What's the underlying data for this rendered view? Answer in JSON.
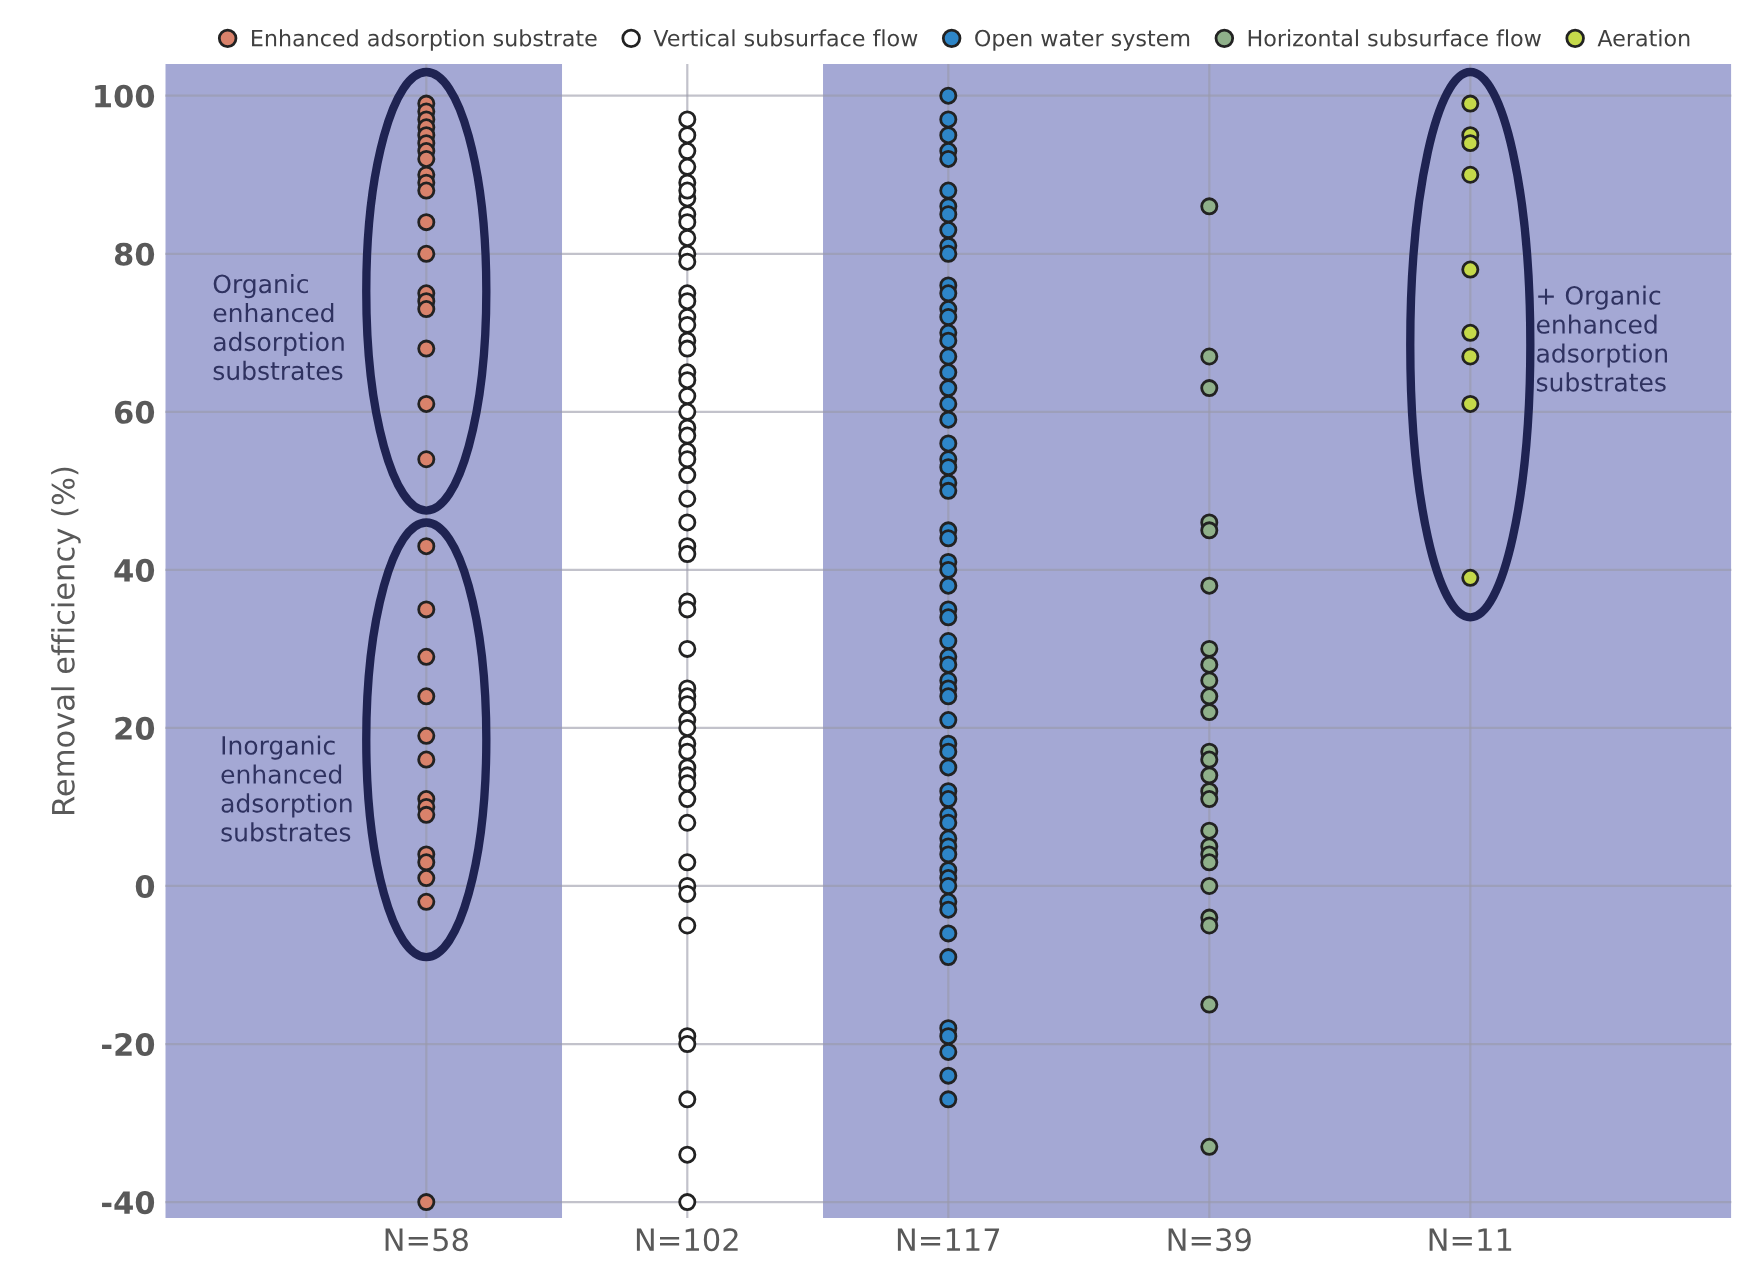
{
  "chart_data": {
    "type": "scatter",
    "ylabel": "Removal efficiency (%)",
    "categories": [
      "N=58",
      "N=102",
      "N=117",
      "N=39",
      "N=11"
    ],
    "ylim": [
      -42,
      104
    ],
    "yticks": [
      -40,
      -20,
      0,
      20,
      40,
      60,
      80,
      100
    ],
    "grid": true,
    "legend": "top",
    "marker": "circle",
    "series": [
      {
        "name": "Enhanced adsorption substrate",
        "color": "#d9826b",
        "x": [
          "N=58",
          "N=58",
          "N=58",
          "N=58",
          "N=58",
          "N=58",
          "N=58",
          "N=58",
          "N=58",
          "N=58",
          "N=58",
          "N=58",
          "N=58",
          "N=58",
          "N=58",
          "N=58",
          "N=58",
          "N=58",
          "N=58",
          "N=58",
          "N=58",
          "N=58",
          "N=58",
          "N=58",
          "N=58",
          "N=58",
          "N=58",
          "N=58",
          "N=58",
          "N=58",
          "N=58",
          "N=58",
          "N=58"
        ],
        "values": [
          99,
          98,
          97,
          96,
          95,
          94,
          93,
          92,
          90,
          89,
          88,
          84,
          80,
          75,
          74,
          73,
          68,
          61,
          54,
          43,
          35,
          29,
          24,
          19,
          16,
          11,
          10,
          9,
          4,
          3,
          1,
          -2,
          -40
        ]
      },
      {
        "name": "Vertical subsurface flow",
        "color": "#ffffff",
        "x": [
          "N=102",
          "N=102",
          "N=102",
          "N=102",
          "N=102",
          "N=102",
          "N=102",
          "N=102",
          "N=102",
          "N=102",
          "N=102",
          "N=102",
          "N=102",
          "N=102",
          "N=102",
          "N=102",
          "N=102",
          "N=102",
          "N=102",
          "N=102",
          "N=102",
          "N=102",
          "N=102",
          "N=102",
          "N=102",
          "N=102",
          "N=102",
          "N=102",
          "N=102",
          "N=102",
          "N=102",
          "N=102",
          "N=102",
          "N=102",
          "N=102",
          "N=102",
          "N=102",
          "N=102",
          "N=102",
          "N=102",
          "N=102",
          "N=102",
          "N=102",
          "N=102",
          "N=102",
          "N=102",
          "N=102",
          "N=102",
          "N=102",
          "N=102",
          "N=102",
          "N=102",
          "N=102",
          "N=102",
          "N=102"
        ],
        "values": [
          97,
          95,
          93,
          91,
          89,
          87,
          85,
          84,
          82,
          80,
          79,
          75,
          74,
          72,
          71,
          69,
          68,
          65,
          64,
          62,
          60,
          58,
          57,
          55,
          54,
          52,
          49,
          46,
          43,
          42,
          36,
          35,
          30,
          25,
          24,
          23,
          21,
          20,
          18,
          17,
          15,
          14,
          13,
          11,
          8,
          3,
          0,
          -1,
          -5,
          -19,
          -20,
          -27,
          -34,
          -40,
          88
        ]
      },
      {
        "name": "Open water system",
        "color": "#2e86c8",
        "x": [
          "N=117",
          "N=117",
          "N=117",
          "N=117",
          "N=117",
          "N=117",
          "N=117",
          "N=117",
          "N=117",
          "N=117",
          "N=117",
          "N=117",
          "N=117",
          "N=117",
          "N=117",
          "N=117",
          "N=117",
          "N=117",
          "N=117",
          "N=117",
          "N=117",
          "N=117",
          "N=117",
          "N=117",
          "N=117",
          "N=117",
          "N=117",
          "N=117",
          "N=117",
          "N=117",
          "N=117",
          "N=117",
          "N=117",
          "N=117",
          "N=117",
          "N=117",
          "N=117",
          "N=117",
          "N=117",
          "N=117",
          "N=117",
          "N=117",
          "N=117",
          "N=117",
          "N=117",
          "N=117",
          "N=117",
          "N=117",
          "N=117",
          "N=117",
          "N=117",
          "N=117",
          "N=117",
          "N=117",
          "N=117",
          "N=117",
          "N=117",
          "N=117",
          "N=117",
          "N=117",
          "N=117",
          "N=117",
          "N=117"
        ],
        "values": [
          100,
          97,
          95,
          93,
          92,
          88,
          86,
          85,
          83,
          81,
          80,
          76,
          75,
          73,
          72,
          70,
          69,
          67,
          65,
          63,
          61,
          59,
          56,
          54,
          53,
          51,
          50,
          45,
          44,
          41,
          40,
          38,
          35,
          34,
          31,
          29,
          28,
          26,
          25,
          24,
          21,
          18,
          17,
          15,
          12,
          11,
          9,
          8,
          6,
          5,
          4,
          2,
          1,
          0,
          -2,
          -3,
          -6,
          -9,
          -18,
          -19,
          -21,
          -24,
          -27
        ]
      },
      {
        "name": "Horizontal subsurface flow",
        "color": "#8fb08a",
        "x": [
          "N=39",
          "N=39",
          "N=39",
          "N=39",
          "N=39",
          "N=39",
          "N=39",
          "N=39",
          "N=39",
          "N=39",
          "N=39",
          "N=39",
          "N=39",
          "N=39",
          "N=39",
          "N=39",
          "N=39",
          "N=39",
          "N=39",
          "N=39",
          "N=39",
          "N=39",
          "N=39",
          "N=39",
          "N=39"
        ],
        "values": [
          86,
          67,
          63,
          46,
          45,
          38,
          30,
          28,
          26,
          24,
          22,
          17,
          16,
          14,
          12,
          11,
          7,
          5,
          4,
          3,
          0,
          -4,
          -5,
          -15,
          -33
        ]
      },
      {
        "name": "Aeration",
        "color": "#c5d94a",
        "x": [
          "N=11",
          "N=11",
          "N=11",
          "N=11",
          "N=11",
          "N=11",
          "N=11",
          "N=11",
          "N=11"
        ],
        "values": [
          99,
          95,
          94,
          90,
          78,
          70,
          67,
          61,
          39
        ]
      }
    ],
    "annotations": [
      "Organic\nenhanced\nadsorption\nsubstrates",
      "Inorganic\nenhanced\nadsorption\nsubstrates",
      "+ Organic\nenhanced\nadsorption\nsubstrates"
    ]
  }
}
